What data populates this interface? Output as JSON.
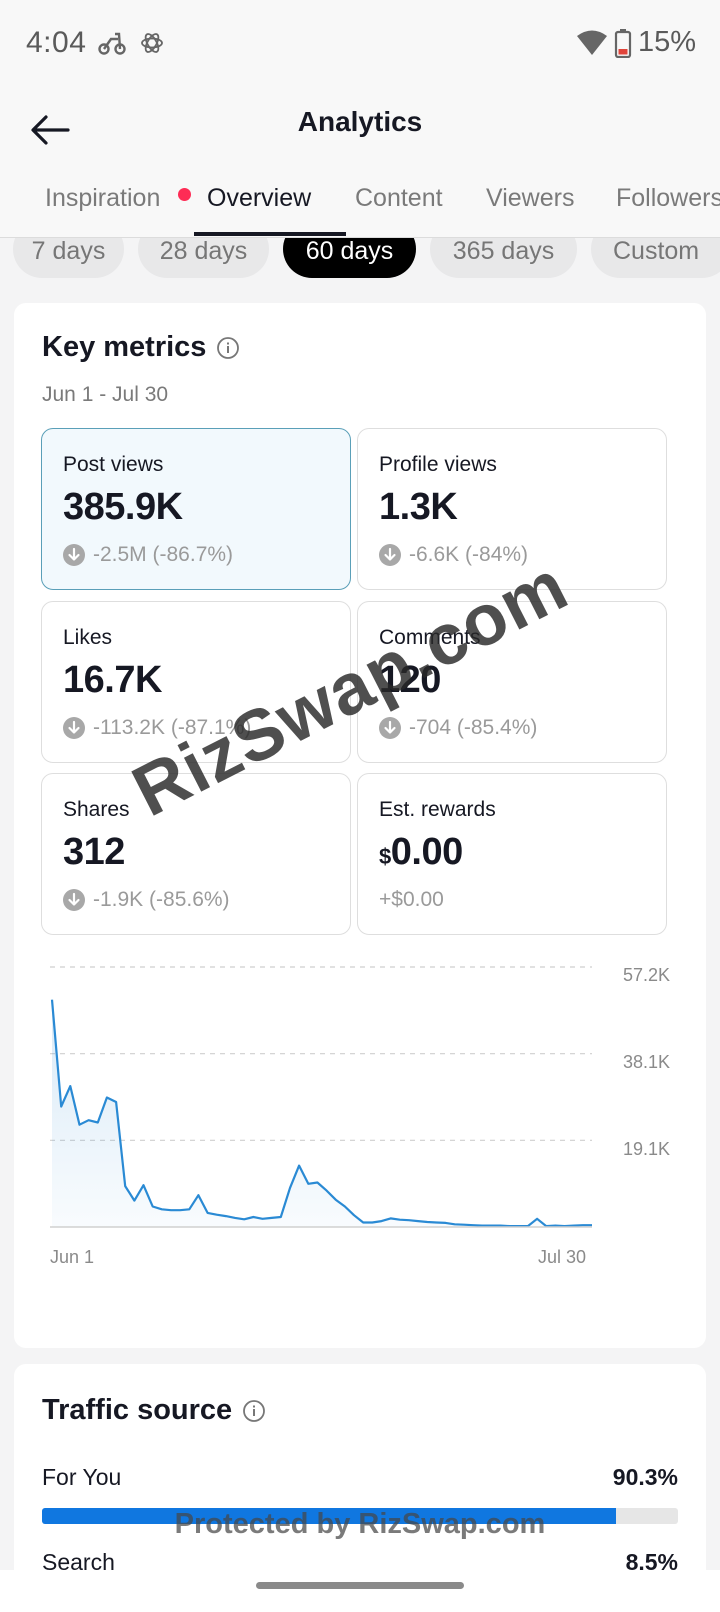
{
  "status_bar": {
    "time": "4:04",
    "battery": "15%"
  },
  "header": {
    "title": "Analytics"
  },
  "tabs": [
    {
      "label": "Inspiration",
      "has_dot": true
    },
    {
      "label": "Overview",
      "active": true
    },
    {
      "label": "Content"
    },
    {
      "label": "Viewers"
    },
    {
      "label": "Followers"
    }
  ],
  "period_chips": [
    {
      "label": "7 days"
    },
    {
      "label": "28 days"
    },
    {
      "label": "60 days",
      "active": true
    },
    {
      "label": "365 days"
    },
    {
      "label": "Custom"
    }
  ],
  "key_metrics": {
    "title": "Key metrics",
    "date_range": "Jun 1 - Jul 30",
    "items": [
      {
        "label": "Post views",
        "value": "385.9K",
        "change": "-2.5M (-86.7%)"
      },
      {
        "label": "Profile views",
        "value": "1.3K",
        "change": "-6.6K (-84%)"
      },
      {
        "label": "Likes",
        "value": "16.7K",
        "change": "-113.2K (-87.1%)"
      },
      {
        "label": "Comments",
        "value": "120",
        "change": "-704 (-85.4%)"
      },
      {
        "label": "Shares",
        "value": "312",
        "change": "-1.9K (-85.6%)"
      },
      {
        "label": "Est. rewards",
        "currency": "$",
        "value": "0.00",
        "change": "+$0.00"
      }
    ]
  },
  "chart_data": {
    "type": "area",
    "title": "",
    "xlabel": "",
    "ylabel": "",
    "x_tick_labels": [
      "Jun 1",
      "Jul 30"
    ],
    "y_tick_labels": [
      "57.2K",
      "38.1K",
      "19.1K"
    ],
    "ylim": [
      0,
      57200
    ],
    "grid": true,
    "series": [
      {
        "values": [
          50000,
          26500,
          31000,
          22500,
          23500,
          23000,
          28500,
          27500,
          9000,
          5800,
          9200,
          4500,
          3900,
          3700,
          3700,
          3900,
          7000,
          3100,
          2700,
          2400,
          2000,
          1700,
          2200,
          1800,
          2000,
          2200,
          8600,
          13500,
          9500,
          9800,
          8000,
          6000,
          4500,
          2600,
          1000,
          1000,
          1300,
          1900,
          1600,
          1500,
          1300,
          1100,
          1000,
          900,
          600,
          500,
          400,
          300,
          300,
          300,
          200,
          200,
          200,
          1800,
          200,
          300,
          200,
          300,
          400,
          400
        ]
      }
    ],
    "color": "#2a8ad4"
  },
  "traffic_source": {
    "title": "Traffic source",
    "items": [
      {
        "label": "For You",
        "value": "90.3%",
        "fraction": 0.903
      },
      {
        "label": "Search",
        "value": "8.5%",
        "fraction": 0.085
      }
    ]
  },
  "watermarks": {
    "diagonal": "RizSwap.com",
    "bottom": "Protected by RizSwap.com"
  },
  "colors": {
    "accent": "#1077e0",
    "tab_dot": "#fe2c55",
    "selected_border": "#5a9fb8"
  }
}
